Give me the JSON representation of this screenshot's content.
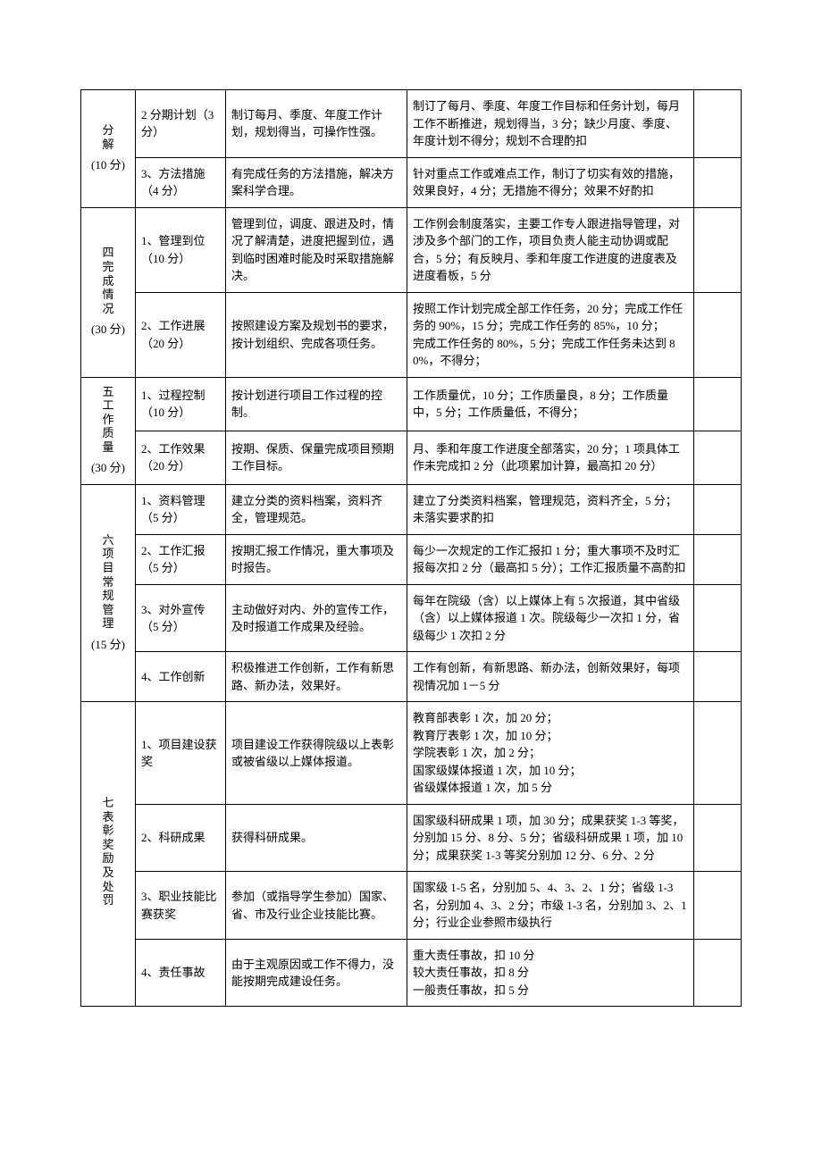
{
  "sections": {
    "s3": {
      "label": "分解",
      "points": "(10 分)",
      "rows": [
        {
          "item": "2 分期计划（3 分）",
          "req": "制订每月、季度、年度工作计划，规划得当，可操作性强。",
          "std": "制订了每月、季度、年度工作目标和任务计划，每月工作不断推进，规划得当，3 分；缺少月度、季度、年度计划不得分；规划不合理酌扣"
        },
        {
          "item": "3、方法措施（4 分）",
          "req": "有完成任务的方法措施，解决方案科学合理。",
          "std": "针对重点工作或难点工作，制订了切实有效的措施，效果良好，4 分；无措施不得分；效果不好酌扣"
        }
      ]
    },
    "s4": {
      "label": "四完成情况",
      "points": "(30 分)",
      "rows": [
        {
          "item": "1、管理到位（10 分）",
          "req": "管理到位，调度、跟进及时，情况了解清楚，进度把握到位，遇到临时困难时能及时采取措施解决。",
          "std": "工作例会制度落实，主要工作专人跟进指导管理，对涉及多个部门的工作，项目负责人能主动协调或配合，5 分；有反映月、季和年度工作进度的进度表及进度看板，5 分"
        },
        {
          "item": "2、工作进展（20 分）",
          "req": "按照建设方案及规划书的要求，按计划组织、完成各项任务。",
          "std": "按照工作计划完成全部工作任务，20 分；完成工作任务的 90%，15 分；完成工作任务的 85%，10 分；\n完成工作任务的 80%，5 分；完成工作任务未达到 80%，不得分；"
        }
      ]
    },
    "s5": {
      "label": "五工作质量",
      "points": "(30 分)",
      "rows": [
        {
          "item": "1、过程控制（10 分）",
          "req": "按计划进行项目工作过程的控制。",
          "std": "工作质量优，10 分；工作质量良，8 分；工作质量中，5 分；工作质量低，不得分；"
        },
        {
          "item": "2、工作效果（20 分）",
          "req": "按期、保质、保量完成项目预期工作目标。",
          "std": "月、季和年度工作进度全部落实，20 分；1 项具体工作未完成扣 2 分（此项累加计算，最高扣 20 分）"
        }
      ]
    },
    "s6": {
      "label": "六项目常规管理",
      "points": "(15 分)",
      "rows": [
        {
          "item": "1、资料管理（5 分）",
          "req": "建立分类的资料档案，资料齐全，管理规范。",
          "std": "建立了分类资料档案，管理规范，资料齐全，5 分；未落实要求酌扣"
        },
        {
          "item": "2、工作汇报（5 分）",
          "req": "按期汇报工作情况，重大事项及时报告。",
          "std": "每少一次规定的工作汇报扣 1 分；重大事项不及时汇报每次扣 2 分（最高扣 5 分）；工作汇报质量不高酌扣"
        },
        {
          "item": "3、对外宣传（5 分）",
          "req": "主动做好对内、外的宣传工作，及时报道工作成果及经验。",
          "std": "每年在院级（含）以上媒体上有 5 次报道，其中省级（含）以上媒体报道 1 次。院级每少一次扣 1 分，省级每少 1 次扣 2 分"
        },
        {
          "item": "4、工作创新",
          "req": "积极推进工作创新，工作有新思路、新办法，效果好。",
          "std": "工作有创新，有新思路、新办法，创新效果好，每项视情况加 1－5 分"
        }
      ]
    },
    "s7": {
      "label": "七表彰奖励及处罚",
      "points": "",
      "rows": [
        {
          "item": "1、项目建设获奖",
          "req": "项目建设工作获得院级以上表彰或被省级以上媒体报道。",
          "std": "教育部表彰 1 次，加 20 分；\n教育厅表彰 1 次，加 10 分；\n学院表彰 1 次，加 2 分；\n国家级媒体报道 1 次，加 10 分；\n省级媒体报道 1 次，加 5 分"
        },
        {
          "item": "2、科研成果",
          "req": "获得科研成果。",
          "std": "国家级科研成果 1 项，加 30 分；成果获奖 1-3 等奖，分别加 15 分、8 分、5 分；省级科研成果 1 项，加 10 分；成果获奖 1-3 等奖分别加 12 分、6 分、2 分"
        },
        {
          "item": "3、职业技能比赛获奖",
          "req": "参加（或指导学生参加）国家、省、市及行业企业技能比赛。",
          "std": "国家级 1-5 名，分别加 5、4、3、2、1 分；省级 1-3 名，分别加 4、3、2 分；市级 1-3 名，分别加 3、2、1 分；行业企业参照市级执行"
        },
        {
          "item": "4、责任事故",
          "req": "由于主观原因或工作不得力，没能按期完成建设任务。",
          "std": "重大责任事故，扣 10 分\n较大责任事故，扣 8 分\n一般责任事故，扣 5 分"
        }
      ]
    }
  }
}
